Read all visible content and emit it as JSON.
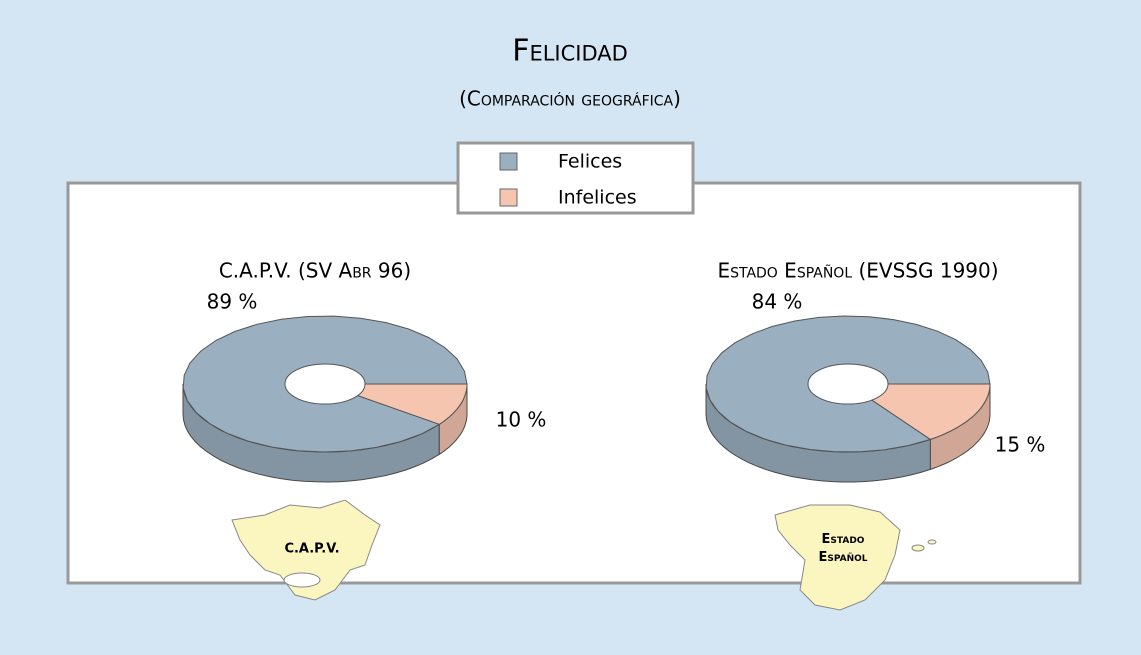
{
  "header": {
    "title": "Felicidad",
    "subtitle": "(Comparación geográfica)"
  },
  "chart_data": [
    {
      "type": "pie",
      "title": "C.A.P.V. (SV Abr 96)",
      "categories": [
        "Felices",
        "Infelices"
      ],
      "values": [
        89,
        10
      ],
      "value_labels": [
        "89 %",
        "10 %"
      ],
      "colors": [
        "#9aafbf",
        "#f5c5b0"
      ],
      "map_label": "C.A.P.V."
    },
    {
      "type": "pie",
      "title": "Estado Español (EVSSG 1990)",
      "categories": [
        "Felices",
        "Infelices"
      ],
      "values": [
        84,
        15
      ],
      "value_labels": [
        "84 %",
        "15 %"
      ],
      "colors": [
        "#9aafbf",
        "#f5c5b0"
      ],
      "map_label": "Estado Español"
    }
  ]
}
